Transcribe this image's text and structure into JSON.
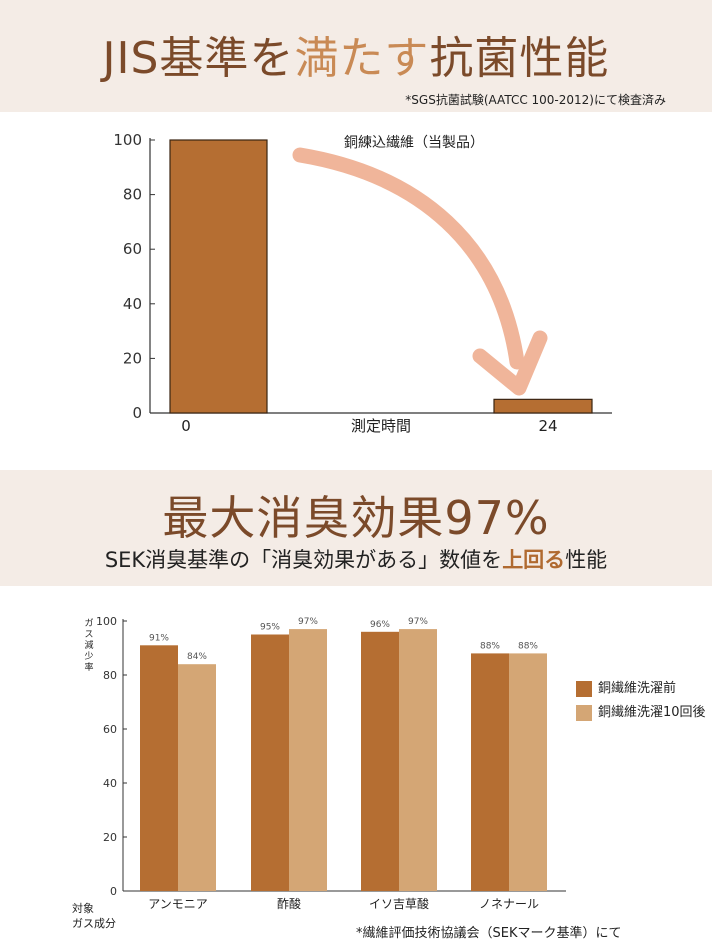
{
  "header1": {
    "title_part1": "JIS基準を",
    "title_part2": "満たす",
    "title_part3": "抗菌性能",
    "note": "*SGS抗菌試験(AATCC 100-2012)にて検査済み"
  },
  "header2": {
    "title": "最大消臭効果97%",
    "subtitle_part1": "SEK消臭基準の「消臭効果がある」数値を",
    "subtitle_part2": "上回る",
    "subtitle_part3": "性能"
  },
  "footnote": "*繊維評価技術協議会（SEKマーク基準）にて",
  "colors": {
    "bar_dark": "#b56e32",
    "bar_light": "#d4a675",
    "arrow": "#f0b59a",
    "band": "#f4ece6"
  },
  "chart_data": [
    {
      "type": "bar",
      "categories": [
        "0",
        "24"
      ],
      "values": [
        100,
        5
      ],
      "annotation": "銅練込繊維（当製品）",
      "xlabel": "測定時間",
      "ylabel": "",
      "ylim": [
        0,
        100
      ],
      "yticks": [
        "0",
        "20",
        "40",
        "60",
        "80",
        "100"
      ],
      "grid": false
    },
    {
      "type": "bar",
      "categories": [
        "アンモニア",
        "酢酸",
        "イソ吉草酸",
        "ノネナール"
      ],
      "series": [
        {
          "name": "銅繊維洗濯前",
          "values": [
            91,
            95,
            96,
            88
          ],
          "labels": [
            "91%",
            "95%",
            "96%",
            "88%"
          ]
        },
        {
          "name": "銅繊維洗濯10回後",
          "values": [
            84,
            97,
            97,
            88
          ],
          "labels": [
            "84%",
            "97%",
            "97%",
            "88%"
          ]
        }
      ],
      "ylabel": "ガス減少率",
      "xcaption_line1": "対象",
      "xcaption_line2": "ガス成分",
      "ylim": [
        0,
        100
      ],
      "yticks": [
        "0",
        "20",
        "40",
        "60",
        "80",
        "100"
      ],
      "legend": "right",
      "grid": false
    }
  ]
}
